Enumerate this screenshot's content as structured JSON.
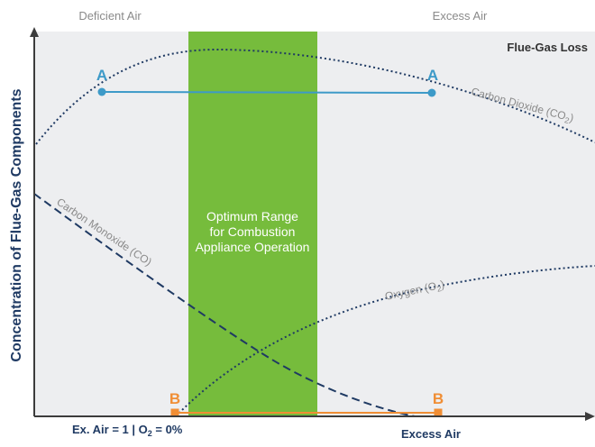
{
  "labels": {
    "deficient_air": "Deficient Air",
    "excess_air_top": "Excess Air",
    "flue_gas_loss": "Flue-Gas Loss",
    "y_axis": "Concentration of Flue-Gas Components",
    "x_axis": "Excess Air",
    "ex_air_prefix": "Ex. Air = 1 | O",
    "ex_air_sub": "2",
    "ex_air_suffix": " = 0%",
    "optimum_line1": "Optimum Range",
    "optimum_line2": "for Combustion",
    "optimum_line3": "Appliance Operation",
    "co2_label": "Carbon Dioxide (CO",
    "co2_sub": "2",
    "co2_close": ")",
    "co_label": "Carbon Monoxide (CO)",
    "o2_label": "Oxygen (O",
    "o2_sub": "2",
    "o2_close": ")",
    "point_a": "A",
    "point_b": "B"
  },
  "colors": {
    "background": "#edeef0",
    "band": "#76bc3c",
    "line_a": "#3d9ac8",
    "line_b": "#f08e35",
    "curve": "#1f3a63",
    "axis": "#3c3c3c"
  }
}
